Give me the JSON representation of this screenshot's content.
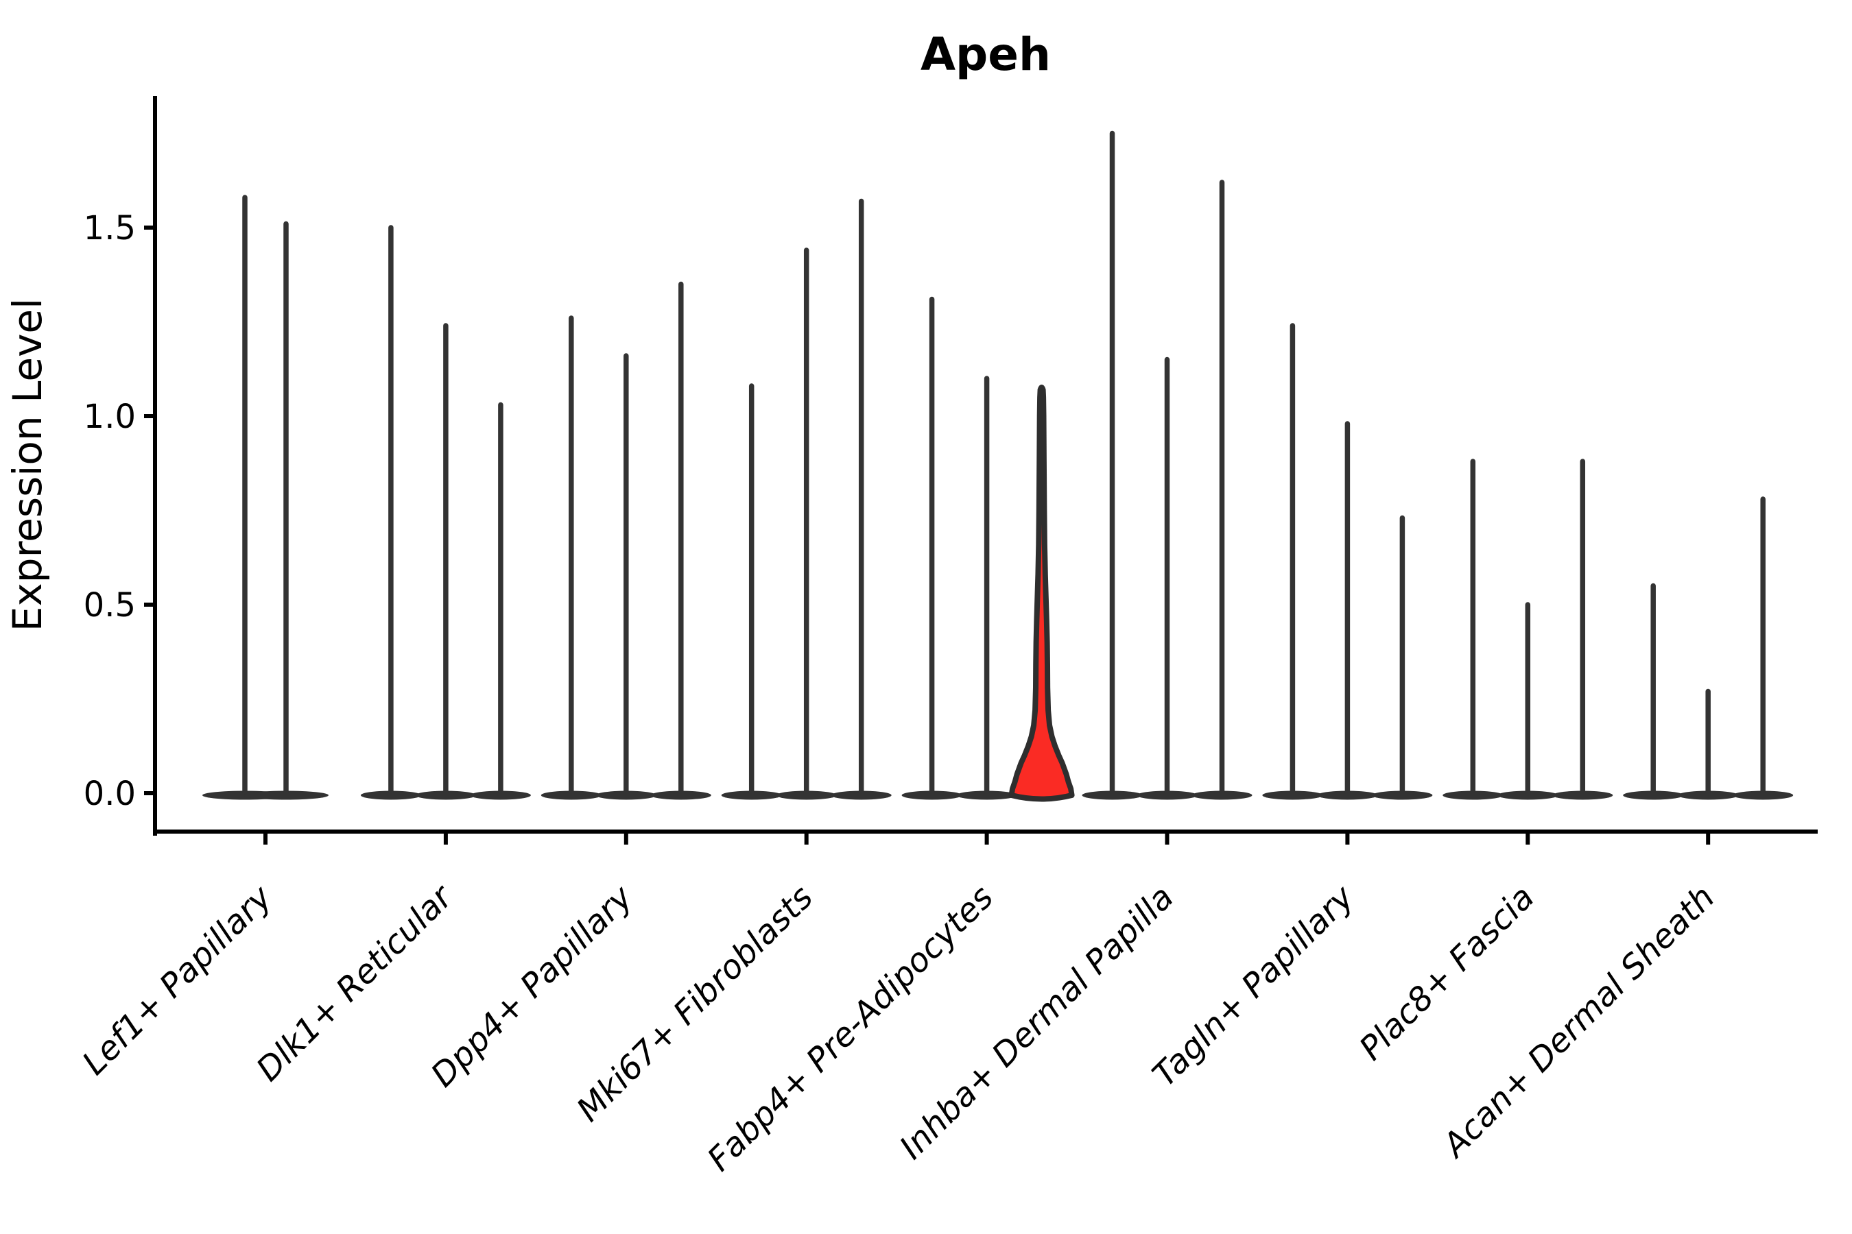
{
  "colors": {
    "violin": "#333333",
    "violin_outline": "#2e2e2e",
    "highlight_fill": "#fa2b24",
    "axis": "#000000",
    "background": "#ffffff"
  },
  "chart_data": {
    "type": "violin",
    "title": "Apeh",
    "ylabel": "Expression Level",
    "xlabel": "",
    "yticks": [
      0.0,
      0.5,
      1.0,
      1.5
    ],
    "ylim": [
      -0.07,
      1.85
    ],
    "grid": false,
    "legend": "none",
    "description": "Grouped violin plot of gene expression; each violin is a near-zero-inflated distribution drawn as a flat base at 0 with a thin spike to its maximum. One violin (third of Fabp4+ Pre-Adipocytes) is highlighted red with a visible density bulge near 0.",
    "categories": [
      "Lef1+ Papillary",
      "Dlk1+ Reticular",
      "Dpp4+ Papillary",
      "Mki67+ Fibroblasts",
      "Fabp4+ Pre-Adipocytes",
      "Inhba+ Dermal Papilla",
      "Tagln+ Papillary",
      "Plac8+ Fascia",
      "Acan+ Dermal Sheath"
    ],
    "groups": [
      {
        "label": "Lef1+ Papillary",
        "violin_maxima": [
          1.58,
          1.51
        ]
      },
      {
        "label": "Dlk1+ Reticular",
        "violin_maxima": [
          1.5,
          1.24,
          1.03
        ]
      },
      {
        "label": "Dpp4+ Papillary",
        "violin_maxima": [
          1.26,
          1.16,
          1.35
        ]
      },
      {
        "label": "Mki67+ Fibroblasts",
        "violin_maxima": [
          1.08,
          1.44,
          1.57
        ]
      },
      {
        "label": "Fabp4+ Pre-Adipocytes",
        "violin_maxima": [
          1.31,
          1.1,
          1.07
        ],
        "highlight_index": 2
      },
      {
        "label": "Inhba+ Dermal Papilla",
        "violin_maxima": [
          1.75,
          1.15,
          1.62
        ]
      },
      {
        "label": "Tagln+ Papillary",
        "violin_maxima": [
          1.24,
          0.98,
          0.73
        ]
      },
      {
        "label": "Plac8+ Fascia",
        "violin_maxima": [
          0.88,
          0.5,
          0.88
        ]
      },
      {
        "label": "Acan+ Dermal Sheath",
        "violin_maxima": [
          0.55,
          0.27,
          0.78
        ]
      }
    ],
    "highlight_violin": {
      "group": "Fabp4+ Pre-Adipocytes",
      "max": 1.07,
      "profile_value_halfwidth": [
        [
          0.0,
          44.0
        ],
        [
          0.012,
          42.5
        ],
        [
          0.03,
          39.0
        ],
        [
          0.05,
          36.0
        ],
        [
          0.08,
          30.0
        ],
        [
          0.1,
          25.0
        ],
        [
          0.125,
          19.5
        ],
        [
          0.15,
          15.0
        ],
        [
          0.18,
          11.5
        ],
        [
          0.22,
          9.5
        ],
        [
          0.28,
          8.6
        ],
        [
          0.34,
          8.4
        ],
        [
          0.4,
          8.0
        ],
        [
          0.46,
          7.2
        ],
        [
          0.52,
          6.2
        ],
        [
          0.58,
          5.2
        ],
        [
          0.66,
          4.3
        ],
        [
          0.75,
          3.8
        ],
        [
          0.88,
          3.3
        ],
        [
          1.0,
          2.9
        ],
        [
          1.05,
          2.5
        ],
        [
          1.07,
          2.0
        ]
      ]
    }
  }
}
